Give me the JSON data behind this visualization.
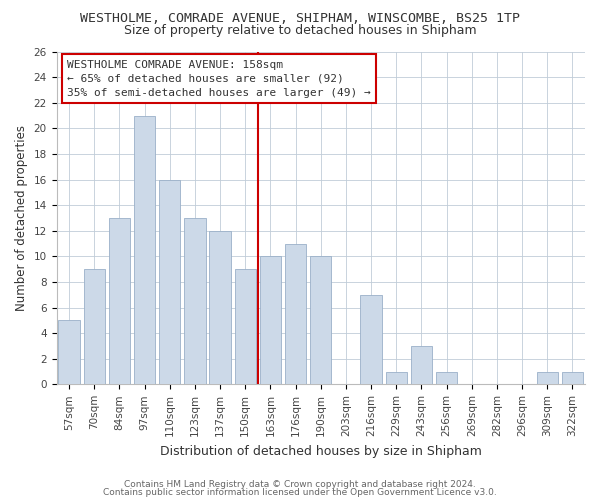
{
  "title": "WESTHOLME, COMRADE AVENUE, SHIPHAM, WINSCOMBE, BS25 1TP",
  "subtitle": "Size of property relative to detached houses in Shipham",
  "xlabel": "Distribution of detached houses by size in Shipham",
  "ylabel": "Number of detached properties",
  "bar_labels": [
    "57sqm",
    "70sqm",
    "84sqm",
    "97sqm",
    "110sqm",
    "123sqm",
    "137sqm",
    "150sqm",
    "163sqm",
    "176sqm",
    "190sqm",
    "203sqm",
    "216sqm",
    "229sqm",
    "243sqm",
    "256sqm",
    "269sqm",
    "282sqm",
    "296sqm",
    "309sqm",
    "322sqm"
  ],
  "bar_values": [
    5,
    9,
    13,
    21,
    16,
    13,
    12,
    9,
    10,
    11,
    10,
    0,
    7,
    1,
    3,
    1,
    0,
    0,
    0,
    1,
    1
  ],
  "bar_color": "#ccd9e8",
  "bar_edge_color": "#9ab0c8",
  "vline_x_idx": 8,
  "vline_color": "#cc0000",
  "ylim_max": 26,
  "yticks": [
    0,
    2,
    4,
    6,
    8,
    10,
    12,
    14,
    16,
    18,
    20,
    22,
    24,
    26
  ],
  "annotation_title": "WESTHOLME COMRADE AVENUE: 158sqm",
  "annotation_line1": "← 65% of detached houses are smaller (92)",
  "annotation_line2": "35% of semi-detached houses are larger (49) →",
  "annotation_box_facecolor": "#ffffff",
  "annotation_box_edgecolor": "#cc0000",
  "footer1": "Contains HM Land Registry data © Crown copyright and database right 2024.",
  "footer2": "Contains public sector information licensed under the Open Government Licence v3.0.",
  "bg_color": "#ffffff",
  "grid_color": "#c0ccd8",
  "title_fontsize": 9.5,
  "subtitle_fontsize": 9,
  "ylabel_fontsize": 8.5,
  "xlabel_fontsize": 9,
  "tick_fontsize": 7.5,
  "footer_fontsize": 6.5,
  "annotation_fontsize": 8
}
